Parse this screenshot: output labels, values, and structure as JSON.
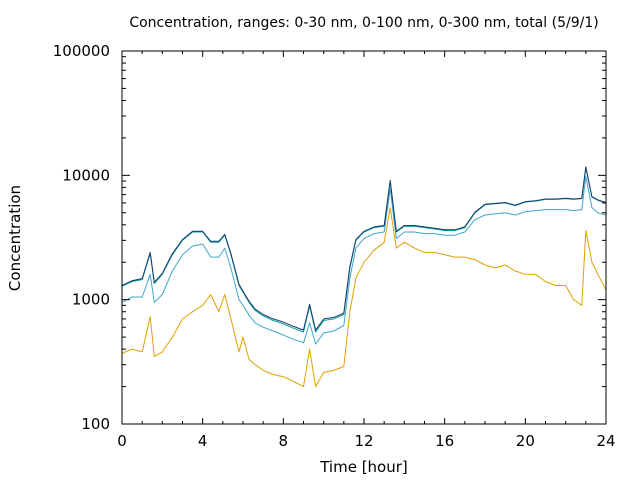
{
  "chart_data": {
    "type": "line",
    "title": "Concentration, ranges: 0-30 nm, 0-100 nm, 0-300 nm, total (5/9/1)",
    "xlabel": "Time [hour]",
    "ylabel": "Concentration",
    "xlim": [
      0,
      24
    ],
    "ylim": [
      100,
      100000
    ],
    "yscale": "log",
    "x_ticks": [
      0,
      4,
      8,
      12,
      16,
      20,
      24
    ],
    "x_tick_labels": [
      "0",
      "4",
      "8",
      "12",
      "16",
      "20",
      "24"
    ],
    "y_ticks": [
      100,
      1000,
      10000,
      100000
    ],
    "y_tick_labels": [
      "100",
      "1000",
      "10000",
      "100000"
    ],
    "grid": false,
    "legend": "none",
    "series": [
      {
        "color": "#e0a000",
        "x": [
          0,
          0.5,
          1.0,
          1.4,
          1.6,
          2.0,
          2.5,
          3.0,
          3.5,
          4.0,
          4.4,
          4.8,
          5.1,
          5.4,
          5.8,
          6.0,
          6.3,
          6.6,
          7.0,
          7.5,
          8.0,
          8.5,
          9.0,
          9.3,
          9.6,
          10.0,
          10.5,
          11.0,
          11.3,
          11.6,
          12.0,
          12.5,
          13.0,
          13.3,
          13.6,
          14.0,
          14.5,
          15.0,
          15.5,
          16.0,
          16.5,
          17.0,
          17.5,
          18.0,
          18.5,
          19.0,
          19.5,
          20.0,
          20.5,
          21.0,
          21.5,
          22.0,
          22.4,
          22.8,
          23.0,
          23.3,
          23.6,
          24.0
        ],
        "values": [
          370,
          400,
          380,
          730,
          350,
          380,
          500,
          700,
          800,
          900,
          1100,
          800,
          1100,
          700,
          380,
          500,
          330,
          300,
          270,
          250,
          240,
          220,
          200,
          400,
          200,
          260,
          270,
          290,
          800,
          1500,
          2000,
          2500,
          2900,
          5500,
          2600,
          2900,
          2600,
          2400,
          2400,
          2300,
          2200,
          2200,
          2100,
          1900,
          1800,
          1900,
          1700,
          1600,
          1600,
          1400,
          1300,
          1300,
          1000,
          900,
          3600,
          2000,
          1600,
          1200
        ]
      },
      {
        "color": "#3fa7c8",
        "x": [
          0,
          0.5,
          1.0,
          1.4,
          1.6,
          2.0,
          2.5,
          3.0,
          3.5,
          4.0,
          4.4,
          4.8,
          5.1,
          5.4,
          5.8,
          6.0,
          6.3,
          6.6,
          7.0,
          7.5,
          8.0,
          8.5,
          9.0,
          9.3,
          9.6,
          10.0,
          10.5,
          11.0,
          11.3,
          11.6,
          12.0,
          12.5,
          13.0,
          13.3,
          13.6,
          14.0,
          14.5,
          15.0,
          15.5,
          16.0,
          16.5,
          17.0,
          17.5,
          18.0,
          18.5,
          19.0,
          19.5,
          20.0,
          20.5,
          21.0,
          21.5,
          22.0,
          22.4,
          22.8,
          23.0,
          23.3,
          23.6,
          24.0
        ],
        "values": [
          950,
          1050,
          1050,
          1600,
          950,
          1100,
          1700,
          2300,
          2700,
          2800,
          2200,
          2200,
          2600,
          1800,
          1000,
          900,
          750,
          650,
          600,
          560,
          520,
          480,
          450,
          650,
          440,
          540,
          560,
          620,
          1500,
          2600,
          3100,
          3400,
          3500,
          7800,
          3100,
          3500,
          3500,
          3400,
          3400,
          3300,
          3300,
          3500,
          4400,
          4800,
          4900,
          5000,
          4800,
          5100,
          5200,
          5300,
          5300,
          5300,
          5200,
          5300,
          9800,
          5500,
          5000,
          4800
        ]
      },
      {
        "color": "#00a09a",
        "x": [
          0,
          0.5,
          1.0,
          1.4,
          1.6,
          2.0,
          2.5,
          3.0,
          3.5,
          4.0,
          4.4,
          4.8,
          5.1,
          5.4,
          5.8,
          6.0,
          6.3,
          6.6,
          7.0,
          7.5,
          8.0,
          8.5,
          9.0,
          9.3,
          9.6,
          10.0,
          10.5,
          11.0,
          11.3,
          11.6,
          12.0,
          12.5,
          13.0,
          13.3,
          13.6,
          14.0,
          14.5,
          15.0,
          15.5,
          16.0,
          16.5,
          17.0,
          17.5,
          18.0,
          18.5,
          19.0,
          19.5,
          20.0,
          20.5,
          21.0,
          21.5,
          22.0,
          22.4,
          22.8,
          23.0,
          23.3,
          23.6,
          24.0
        ],
        "values": [
          1280,
          1400,
          1450,
          2350,
          1350,
          1600,
          2300,
          3000,
          3500,
          3500,
          2900,
          2900,
          3300,
          2300,
          1300,
          1150,
          950,
          820,
          740,
          680,
          640,
          590,
          550,
          890,
          550,
          680,
          700,
          760,
          1800,
          3000,
          3500,
          3800,
          3900,
          9000,
          3500,
          3900,
          3900,
          3800,
          3700,
          3600,
          3600,
          3800,
          5000,
          5800,
          5900,
          6000,
          5700,
          6100,
          6200,
          6400,
          6400,
          6500,
          6400,
          6500,
          11500,
          6700,
          6300,
          6000
        ]
      },
      {
        "color": "#1a3a6e",
        "x": [
          0,
          0.5,
          1.0,
          1.4,
          1.6,
          2.0,
          2.5,
          3.0,
          3.5,
          4.0,
          4.4,
          4.8,
          5.1,
          5.4,
          5.8,
          6.0,
          6.3,
          6.6,
          7.0,
          7.5,
          8.0,
          8.5,
          9.0,
          9.3,
          9.6,
          10.0,
          10.5,
          11.0,
          11.3,
          11.6,
          12.0,
          12.5,
          13.0,
          13.3,
          13.6,
          14.0,
          14.5,
          15.0,
          15.5,
          16.0,
          16.5,
          17.0,
          17.5,
          18.0,
          18.5,
          19.0,
          19.5,
          20.0,
          20.5,
          21.0,
          21.5,
          22.0,
          22.4,
          22.8,
          23.0,
          23.3,
          23.6,
          24.0
        ],
        "values": [
          1300,
          1420,
          1480,
          2400,
          1380,
          1630,
          2350,
          3050,
          3550,
          3550,
          2950,
          2950,
          3350,
          2350,
          1330,
          1170,
          970,
          840,
          760,
          700,
          660,
          610,
          570,
          920,
          570,
          700,
          720,
          780,
          1850,
          3050,
          3550,
          3850,
          3950,
          9100,
          3550,
          3950,
          3950,
          3850,
          3750,
          3650,
          3650,
          3850,
          5050,
          5850,
          5950,
          6050,
          5750,
          6150,
          6250,
          6450,
          6450,
          6550,
          6450,
          6550,
          11700,
          6750,
          6350,
          6050
        ]
      }
    ]
  }
}
